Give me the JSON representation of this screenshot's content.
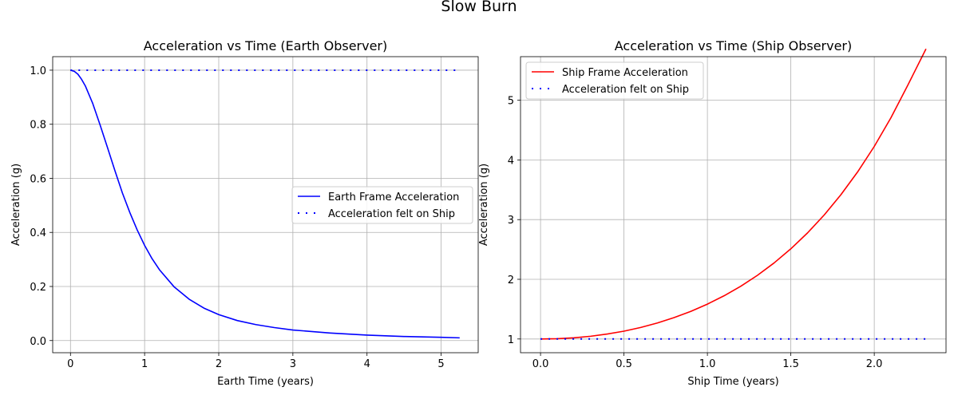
{
  "figure": {
    "suptitle": "Slow Burn"
  },
  "chart_data": [
    {
      "type": "line",
      "title": "Acceleration vs Time (Earth Observer)",
      "xlabel": "Earth Time (years)",
      "ylabel": "Acceleration (g)",
      "xlim": [
        -0.24,
        5.5
      ],
      "ylim": [
        -0.045,
        1.05
      ],
      "xticks": [
        0,
        1,
        2,
        3,
        4,
        5
      ],
      "xtick_labels": [
        "0",
        "1",
        "2",
        "3",
        "4",
        "5"
      ],
      "yticks": [
        0.0,
        0.2,
        0.4,
        0.6,
        0.8,
        1.0
      ],
      "ytick_labels": [
        "0.0",
        "0.2",
        "0.4",
        "0.6",
        "0.8",
        "1.0"
      ],
      "grid": true,
      "legend_position": "center-right",
      "series": [
        {
          "name": "Earth Frame Acceleration",
          "color": "#0000ff",
          "style": "solid",
          "x": [
            0,
            0.05,
            0.1,
            0.15,
            0.2,
            0.3,
            0.4,
            0.5,
            0.6,
            0.7,
            0.8,
            0.9,
            1.0,
            1.1,
            1.2,
            1.4,
            1.6,
            1.8,
            2.0,
            2.25,
            2.5,
            2.75,
            3.0,
            3.5,
            4.0,
            4.5,
            5.0,
            5.25
          ],
          "y": [
            1.0,
            0.996,
            0.985,
            0.966,
            0.942,
            0.877,
            0.797,
            0.713,
            0.628,
            0.546,
            0.474,
            0.409,
            0.352,
            0.303,
            0.262,
            0.198,
            0.153,
            0.12,
            0.096,
            0.074,
            0.059,
            0.048,
            0.039,
            0.028,
            0.02,
            0.015,
            0.012,
            0.01
          ]
        },
        {
          "name": "Acceleration felt on Ship",
          "color": "#0000ff",
          "style": "dotted",
          "x": [
            0,
            5.25
          ],
          "y": [
            1.0,
            1.0
          ]
        }
      ]
    },
    {
      "type": "line",
      "title": "Acceleration vs Time (Ship Observer)",
      "xlabel": "Ship Time (years)",
      "ylabel": "Acceleration (g)",
      "xlim": [
        -0.12,
        2.43
      ],
      "ylim": [
        0.77,
        5.73
      ],
      "xticks": [
        0,
        0.5,
        1.0,
        1.5,
        2.0
      ],
      "xtick_labels": [
        "0.0",
        "0.5",
        "1.0",
        "1.5",
        "2.0"
      ],
      "yticks": [
        1,
        2,
        3,
        4,
        5
      ],
      "ytick_labels": [
        "1",
        "2",
        "3",
        "4",
        "5"
      ],
      "grid": true,
      "legend_position": "top-left",
      "series": [
        {
          "name": "Ship Frame Acceleration",
          "color": "#ff0000",
          "style": "solid",
          "x": [
            0,
            0.1,
            0.2,
            0.3,
            0.4,
            0.5,
            0.6,
            0.7,
            0.8,
            0.9,
            1.0,
            1.1,
            1.2,
            1.3,
            1.4,
            1.5,
            1.6,
            1.7,
            1.8,
            1.9,
            2.0,
            2.1,
            2.2,
            2.31
          ],
          "y": [
            1.0,
            1.005,
            1.02,
            1.046,
            1.083,
            1.131,
            1.193,
            1.268,
            1.358,
            1.462,
            1.584,
            1.724,
            1.884,
            2.067,
            2.275,
            2.511,
            2.777,
            3.078,
            3.417,
            3.798,
            4.226,
            4.707,
            5.247,
            5.86
          ]
        },
        {
          "name": "Acceleration felt on Ship",
          "color": "#0000ff",
          "style": "dotted",
          "x": [
            0,
            2.31
          ],
          "y": [
            1.0,
            1.0
          ]
        }
      ]
    }
  ]
}
